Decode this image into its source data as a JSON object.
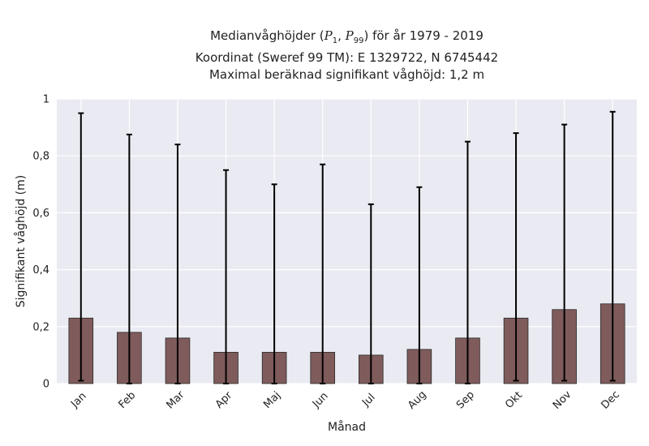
{
  "chart_data": {
    "type": "bar",
    "title": {
      "line1_prefix": "Medianvåghöjder (",
      "line1_p1": "P",
      "line1_p1_sub": "1",
      "line1_sep": ", ",
      "line1_p2": "P",
      "line1_p2_sub": "99",
      "line1_suffix": ") för år 1979 - 2019",
      "line2": "Koordinat (Sweref 99 TM): E 1329722, N 6745442",
      "line3": "Maximal beräknad signifikant våghöjd: 1,2 m"
    },
    "xlabel": "Månad",
    "ylabel": "Signifikant våghöjd (m)",
    "ylim": [
      0,
      1
    ],
    "yticks": [
      0,
      0.2,
      0.4,
      0.6,
      0.8,
      1
    ],
    "ytick_labels": [
      "0",
      "0,2",
      "0,4",
      "0,6",
      "0,8",
      "1"
    ],
    "grid": true,
    "categories": [
      "Jan",
      "Feb",
      "Mar",
      "Apr",
      "Maj",
      "Jun",
      "Jul",
      "Aug",
      "Sep",
      "Okt",
      "Nov",
      "Dec"
    ],
    "values": [
      0.23,
      0.18,
      0.16,
      0.11,
      0.11,
      0.11,
      0.1,
      0.12,
      0.16,
      0.23,
      0.26,
      0.28
    ],
    "p1": [
      0.01,
      0.0,
      0.0,
      0.0,
      0.0,
      0.0,
      0.0,
      0.0,
      0.0,
      0.01,
      0.01,
      0.01
    ],
    "p99": [
      0.95,
      0.875,
      0.84,
      0.75,
      0.7,
      0.77,
      0.63,
      0.69,
      0.85,
      0.88,
      0.91,
      0.955
    ],
    "colors": {
      "bar": "#7f5b5b",
      "bar_edge": "#2b2b2b",
      "errorbar": "#000000",
      "plot_bg": "#eaeaf2",
      "grid": "#ffffff"
    }
  }
}
